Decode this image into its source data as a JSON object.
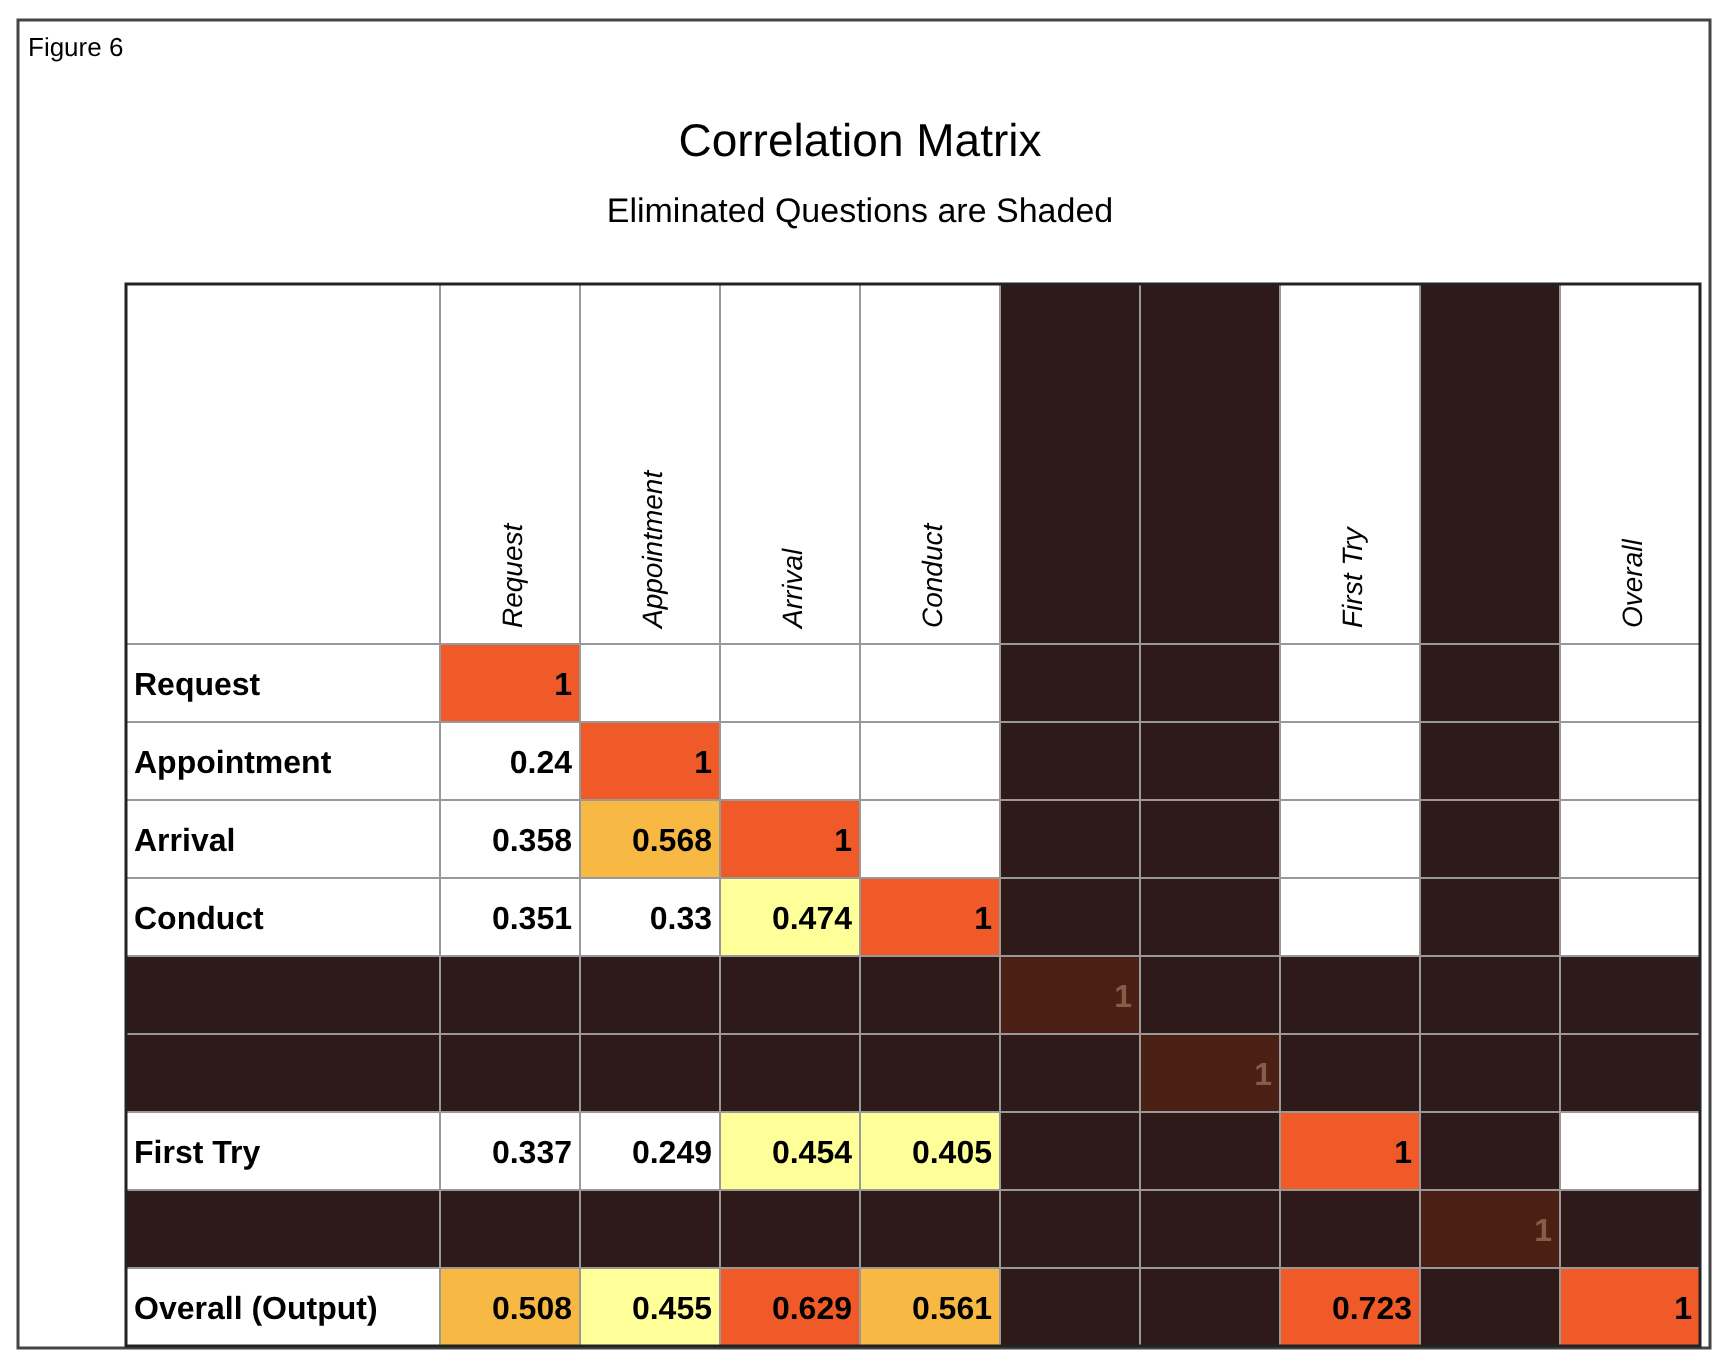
{
  "chart_data": {
    "type": "heatmap",
    "title": "Correlation Matrix",
    "subtitle": "Eliminated Questions are Shaded",
    "annotations": [
      "Figure 6"
    ],
    "categories": [
      "Request",
      "Appointment",
      "Arrival",
      "Conduct",
      null,
      null,
      "First Try",
      null,
      "Overall"
    ],
    "y_categories": [
      "Request",
      "Appointment",
      "Arrival",
      "Conduct",
      null,
      null,
      "First Try",
      null,
      "Overall (Output)"
    ],
    "cells": [
      [
        1,
        null,
        null,
        null,
        null,
        null,
        null,
        null,
        null
      ],
      [
        0.24,
        1,
        null,
        null,
        null,
        null,
        null,
        null,
        null
      ],
      [
        0.358,
        0.568,
        1,
        null,
        null,
        null,
        null,
        null,
        null
      ],
      [
        0.351,
        0.33,
        0.474,
        1,
        null,
        null,
        null,
        null,
        null
      ],
      [
        null,
        null,
        null,
        null,
        1,
        null,
        null,
        null,
        null
      ],
      [
        null,
        null,
        null,
        null,
        null,
        1,
        null,
        null,
        null
      ],
      [
        0.337,
        0.249,
        0.454,
        0.405,
        null,
        null,
        1,
        null,
        null
      ],
      [
        null,
        null,
        null,
        null,
        null,
        null,
        null,
        1,
        null
      ],
      [
        0.508,
        0.455,
        0.629,
        0.561,
        null,
        null,
        0.723,
        null,
        1
      ]
    ],
    "data_labels": true
  }
}
